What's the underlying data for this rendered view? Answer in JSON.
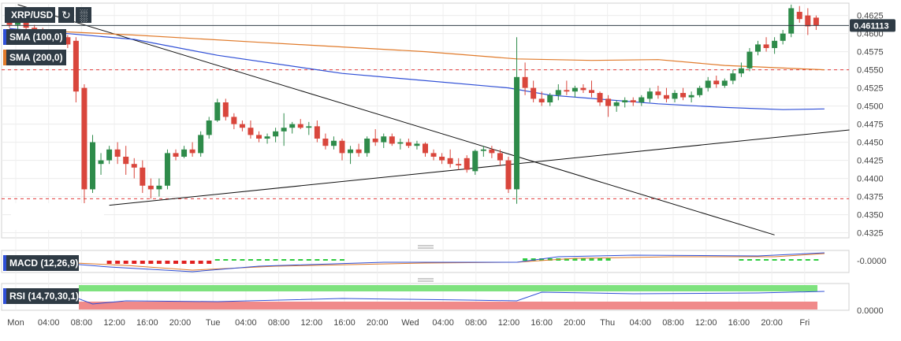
{
  "chart_data": {
    "type": "candlestick",
    "symbol": "XRP/USD",
    "last_price": "0.461113",
    "y_ticks": [
      "0.4625",
      "0.4600",
      "0.4575",
      "0.4550",
      "0.4525",
      "0.4500",
      "0.4475",
      "0.4450",
      "0.4425",
      "0.4400",
      "0.4375",
      "0.4350",
      "0.4325"
    ],
    "x_ticks": [
      "Mon",
      "04:00",
      "08:00",
      "12:00",
      "16:00",
      "20:00",
      "Tue",
      "04:00",
      "08:00",
      "12:00",
      "16:00",
      "20:00",
      "Wed",
      "04:00",
      "08:00",
      "12:00",
      "16:00",
      "20:00",
      "Thu",
      "04:00",
      "08:00",
      "12:00",
      "16:00",
      "20:00",
      "Fri"
    ],
    "ylim": [
      0.4318,
      0.4642
    ],
    "grid": true,
    "horizontal_levels": [
      0.455,
      0.4372
    ],
    "indicators": {
      "sma100": {
        "label": "SMA (100,0)",
        "color": "#2f4fd6"
      },
      "sma200": {
        "label": "SMA (200,0)",
        "color": "#e07a2a"
      },
      "macd": {
        "label": "MACD (12,26,9)",
        "axis_label": "-0.0000"
      },
      "rsi": {
        "label": "RSI (14,70,30,1)",
        "axis_label": "0.0000"
      }
    },
    "candles": [
      {
        "o": 0.4615,
        "h": 0.4625,
        "l": 0.4608,
        "c": 0.4612
      },
      {
        "o": 0.4612,
        "h": 0.462,
        "l": 0.4605,
        "c": 0.4616
      },
      {
        "o": 0.4616,
        "h": 0.4622,
        "l": 0.4605,
        "c": 0.4608
      },
      {
        "o": 0.4608,
        "h": 0.4612,
        "l": 0.4595,
        "c": 0.46
      },
      {
        "o": 0.46,
        "h": 0.4608,
        "l": 0.459,
        "c": 0.4595
      },
      {
        "o": 0.4595,
        "h": 0.46,
        "l": 0.4588,
        "c": 0.459
      },
      {
        "o": 0.459,
        "h": 0.4598,
        "l": 0.4585,
        "c": 0.4595
      },
      {
        "o": 0.4595,
        "h": 0.4598,
        "l": 0.458,
        "c": 0.4585
      },
      {
        "o": 0.459,
        "h": 0.4595,
        "l": 0.4505,
        "c": 0.452
      },
      {
        "o": 0.4525,
        "h": 0.453,
        "l": 0.433,
        "c": 0.4385
      },
      {
        "o": 0.4385,
        "h": 0.446,
        "l": 0.438,
        "c": 0.445
      },
      {
        "o": 0.442,
        "h": 0.4435,
        "l": 0.4405,
        "c": 0.4425
      },
      {
        "o": 0.4425,
        "h": 0.4445,
        "l": 0.442,
        "c": 0.444
      },
      {
        "o": 0.444,
        "h": 0.445,
        "l": 0.442,
        "c": 0.443
      },
      {
        "o": 0.443,
        "h": 0.4445,
        "l": 0.4405,
        "c": 0.442
      },
      {
        "o": 0.442,
        "h": 0.4428,
        "l": 0.44,
        "c": 0.4415
      },
      {
        "o": 0.4415,
        "h": 0.4425,
        "l": 0.438,
        "c": 0.439
      },
      {
        "o": 0.439,
        "h": 0.44,
        "l": 0.4372,
        "c": 0.4385
      },
      {
        "o": 0.4385,
        "h": 0.44,
        "l": 0.4375,
        "c": 0.439
      },
      {
        "o": 0.439,
        "h": 0.444,
        "l": 0.4385,
        "c": 0.4435
      },
      {
        "o": 0.4435,
        "h": 0.444,
        "l": 0.4425,
        "c": 0.443
      },
      {
        "o": 0.443,
        "h": 0.4445,
        "l": 0.4428,
        "c": 0.444
      },
      {
        "o": 0.444,
        "h": 0.445,
        "l": 0.443,
        "c": 0.4435
      },
      {
        "o": 0.4435,
        "h": 0.4465,
        "l": 0.443,
        "c": 0.446
      },
      {
        "o": 0.446,
        "h": 0.4485,
        "l": 0.4455,
        "c": 0.448
      },
      {
        "o": 0.448,
        "h": 0.451,
        "l": 0.4478,
        "c": 0.4505
      },
      {
        "o": 0.4505,
        "h": 0.451,
        "l": 0.448,
        "c": 0.4485
      },
      {
        "o": 0.4485,
        "h": 0.449,
        "l": 0.4468,
        "c": 0.4475
      },
      {
        "o": 0.4475,
        "h": 0.448,
        "l": 0.4465,
        "c": 0.447
      },
      {
        "o": 0.447,
        "h": 0.448,
        "l": 0.4455,
        "c": 0.446
      },
      {
        "o": 0.446,
        "h": 0.4465,
        "l": 0.445,
        "c": 0.4455
      },
      {
        "o": 0.4455,
        "h": 0.4462,
        "l": 0.4448,
        "c": 0.4458
      },
      {
        "o": 0.4458,
        "h": 0.447,
        "l": 0.445,
        "c": 0.4465
      },
      {
        "o": 0.4465,
        "h": 0.449,
        "l": 0.4445,
        "c": 0.447
      },
      {
        "o": 0.447,
        "h": 0.4478,
        "l": 0.4462,
        "c": 0.4475
      },
      {
        "o": 0.4475,
        "h": 0.4482,
        "l": 0.4468,
        "c": 0.447
      },
      {
        "o": 0.447,
        "h": 0.4478,
        "l": 0.446,
        "c": 0.4472
      },
      {
        "o": 0.4472,
        "h": 0.448,
        "l": 0.445,
        "c": 0.4455
      },
      {
        "o": 0.4455,
        "h": 0.4462,
        "l": 0.444,
        "c": 0.4445
      },
      {
        "o": 0.4445,
        "h": 0.4458,
        "l": 0.444,
        "c": 0.4452
      },
      {
        "o": 0.4452,
        "h": 0.4455,
        "l": 0.4425,
        "c": 0.4435
      },
      {
        "o": 0.4435,
        "h": 0.4445,
        "l": 0.442,
        "c": 0.444
      },
      {
        "o": 0.444,
        "h": 0.4448,
        "l": 0.443,
        "c": 0.4435
      },
      {
        "o": 0.4435,
        "h": 0.4458,
        "l": 0.443,
        "c": 0.4455
      },
      {
        "o": 0.4455,
        "h": 0.4468,
        "l": 0.4445,
        "c": 0.445
      },
      {
        "o": 0.445,
        "h": 0.4462,
        "l": 0.4442,
        "c": 0.4458
      },
      {
        "o": 0.4458,
        "h": 0.4462,
        "l": 0.4445,
        "c": 0.4448
      },
      {
        "o": 0.4448,
        "h": 0.4455,
        "l": 0.444,
        "c": 0.445
      },
      {
        "o": 0.445,
        "h": 0.4455,
        "l": 0.4442,
        "c": 0.4445
      },
      {
        "o": 0.4445,
        "h": 0.4452,
        "l": 0.444,
        "c": 0.4448
      },
      {
        "o": 0.4448,
        "h": 0.445,
        "l": 0.443,
        "c": 0.4435
      },
      {
        "o": 0.4435,
        "h": 0.444,
        "l": 0.4425,
        "c": 0.443
      },
      {
        "o": 0.443,
        "h": 0.4435,
        "l": 0.442,
        "c": 0.4425
      },
      {
        "o": 0.4428,
        "h": 0.444,
        "l": 0.4415,
        "c": 0.442
      },
      {
        "o": 0.442,
        "h": 0.4428,
        "l": 0.4412,
        "c": 0.4418
      },
      {
        "o": 0.4428,
        "h": 0.4432,
        "l": 0.4408,
        "c": 0.4412
      },
      {
        "o": 0.441,
        "h": 0.444,
        "l": 0.4405,
        "c": 0.4438
      },
      {
        "o": 0.4438,
        "h": 0.4445,
        "l": 0.443,
        "c": 0.444
      },
      {
        "o": 0.444,
        "h": 0.4445,
        "l": 0.4428,
        "c": 0.4435
      },
      {
        "o": 0.4435,
        "h": 0.444,
        "l": 0.4418,
        "c": 0.4425
      },
      {
        "o": 0.4425,
        "h": 0.443,
        "l": 0.438,
        "c": 0.4385
      },
      {
        "o": 0.4385,
        "h": 0.4595,
        "l": 0.4365,
        "c": 0.454
      },
      {
        "o": 0.454,
        "h": 0.456,
        "l": 0.4515,
        "c": 0.4525
      },
      {
        "o": 0.4525,
        "h": 0.4535,
        "l": 0.4505,
        "c": 0.451
      },
      {
        "o": 0.451,
        "h": 0.452,
        "l": 0.45,
        "c": 0.4505
      },
      {
        "o": 0.4505,
        "h": 0.4518,
        "l": 0.45,
        "c": 0.4515
      },
      {
        "o": 0.4515,
        "h": 0.453,
        "l": 0.4508,
        "c": 0.4522
      },
      {
        "o": 0.4522,
        "h": 0.4535,
        "l": 0.4515,
        "c": 0.452
      },
      {
        "o": 0.452,
        "h": 0.4528,
        "l": 0.4512,
        "c": 0.4525
      },
      {
        "o": 0.4525,
        "h": 0.453,
        "l": 0.4518,
        "c": 0.4522
      },
      {
        "o": 0.4522,
        "h": 0.4535,
        "l": 0.4512,
        "c": 0.4518
      },
      {
        "o": 0.4518,
        "h": 0.452,
        "l": 0.45,
        "c": 0.4505
      },
      {
        "o": 0.451,
        "h": 0.4515,
        "l": 0.4485,
        "c": 0.45
      },
      {
        "o": 0.45,
        "h": 0.4508,
        "l": 0.4492,
        "c": 0.4505
      },
      {
        "o": 0.4505,
        "h": 0.4512,
        "l": 0.4498,
        "c": 0.4508
      },
      {
        "o": 0.4508,
        "h": 0.4512,
        "l": 0.45,
        "c": 0.4505
      },
      {
        "o": 0.4505,
        "h": 0.4515,
        "l": 0.45,
        "c": 0.4512
      },
      {
        "o": 0.451,
        "h": 0.4525,
        "l": 0.4505,
        "c": 0.452
      },
      {
        "o": 0.452,
        "h": 0.4528,
        "l": 0.451,
        "c": 0.4515
      },
      {
        "o": 0.4515,
        "h": 0.4525,
        "l": 0.4505,
        "c": 0.451
      },
      {
        "o": 0.451,
        "h": 0.4522,
        "l": 0.4505,
        "c": 0.4518
      },
      {
        "o": 0.4518,
        "h": 0.4525,
        "l": 0.4508,
        "c": 0.4512
      },
      {
        "o": 0.4512,
        "h": 0.452,
        "l": 0.4505,
        "c": 0.4515
      },
      {
        "o": 0.4515,
        "h": 0.4528,
        "l": 0.4512,
        "c": 0.4525
      },
      {
        "o": 0.4525,
        "h": 0.454,
        "l": 0.452,
        "c": 0.4535
      },
      {
        "o": 0.4535,
        "h": 0.4542,
        "l": 0.4525,
        "c": 0.453
      },
      {
        "o": 0.4528,
        "h": 0.4538,
        "l": 0.4525,
        "c": 0.4535
      },
      {
        "o": 0.4535,
        "h": 0.455,
        "l": 0.453,
        "c": 0.4545
      },
      {
        "o": 0.4545,
        "h": 0.456,
        "l": 0.454,
        "c": 0.4552
      },
      {
        "o": 0.4552,
        "h": 0.458,
        "l": 0.4548,
        "c": 0.4575
      },
      {
        "o": 0.4575,
        "h": 0.459,
        "l": 0.457,
        "c": 0.4585
      },
      {
        "o": 0.4585,
        "h": 0.4595,
        "l": 0.4575,
        "c": 0.458
      },
      {
        "o": 0.458,
        "h": 0.4595,
        "l": 0.4572,
        "c": 0.459
      },
      {
        "o": 0.459,
        "h": 0.4605,
        "l": 0.4585,
        "c": 0.46
      },
      {
        "o": 0.46,
        "h": 0.464,
        "l": 0.4595,
        "c": 0.4635
      },
      {
        "o": 0.463,
        "h": 0.4638,
        "l": 0.4615,
        "c": 0.462
      },
      {
        "o": 0.4625,
        "h": 0.4635,
        "l": 0.4598,
        "c": 0.461
      },
      {
        "o": 0.4622,
        "h": 0.4625,
        "l": 0.4605,
        "c": 0.4611
      }
    ]
  }
}
